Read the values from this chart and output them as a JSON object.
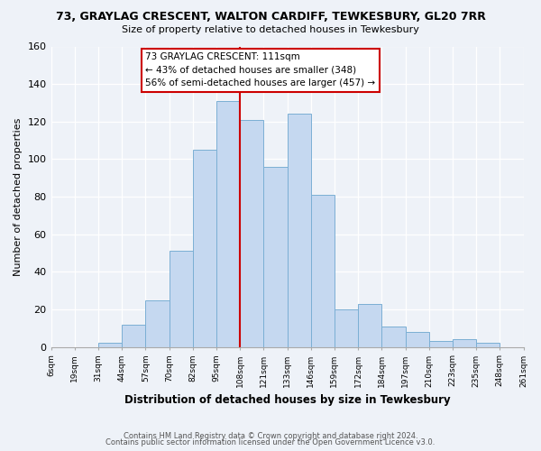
{
  "title": "73, GRAYLAG CRESCENT, WALTON CARDIFF, TEWKESBURY, GL20 7RR",
  "subtitle": "Size of property relative to detached houses in Tewkesbury",
  "xlabel": "Distribution of detached houses by size in Tewkesbury",
  "ylabel": "Number of detached properties",
  "tick_labels": [
    "6sqm",
    "19sqm",
    "31sqm",
    "44sqm",
    "57sqm",
    "70sqm",
    "82sqm",
    "95sqm",
    "108sqm",
    "121sqm",
    "133sqm",
    "146sqm",
    "159sqm",
    "172sqm",
    "184sqm",
    "197sqm",
    "210sqm",
    "223sqm",
    "235sqm",
    "248sqm",
    "261sqm"
  ],
  "counts": [
    0,
    0,
    2,
    12,
    25,
    51,
    105,
    131,
    121,
    96,
    124,
    81,
    20,
    23,
    11,
    8,
    3,
    4,
    2,
    0
  ],
  "bar_color": "#c5d8f0",
  "bar_edge_color": "#7bafd4",
  "marker_index": 8,
  "marker_color": "#cc0000",
  "annotation_title": "73 GRAYLAG CRESCENT: 111sqm",
  "annotation_line1": "← 43% of detached houses are smaller (348)",
  "annotation_line2": "56% of semi-detached houses are larger (457) →",
  "annotation_box_color": "#ffffff",
  "annotation_box_edge_color": "#cc0000",
  "ylim": [
    0,
    160
  ],
  "yticks": [
    0,
    20,
    40,
    60,
    80,
    100,
    120,
    140,
    160
  ],
  "footer_line1": "Contains HM Land Registry data © Crown copyright and database right 2024.",
  "footer_line2": "Contains public sector information licensed under the Open Government Licence v3.0.",
  "bg_color": "#eef2f8"
}
